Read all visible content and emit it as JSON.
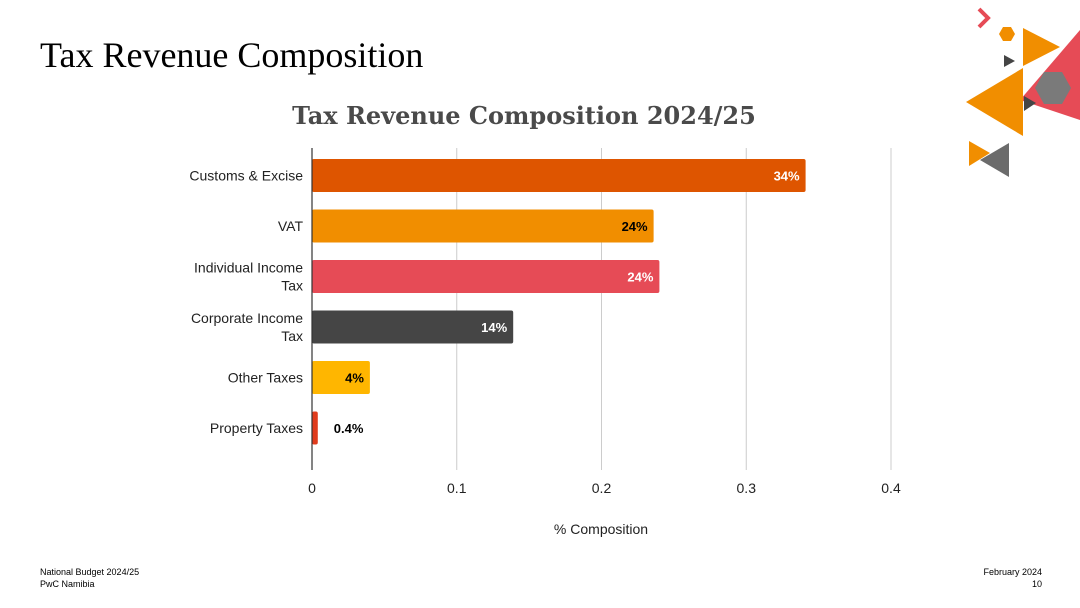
{
  "slide": {
    "title": "Tax Revenue Composition"
  },
  "footer": {
    "left_line1": "National Budget 2024/25",
    "left_line2": "PwC Namibia",
    "right_line1": "February 2024",
    "right_line2": "10"
  },
  "colors": {
    "customs": "#de5500",
    "vat": "#f18e00",
    "individual": "#e64b56",
    "corporate": "#454545",
    "other": "#ffb600",
    "property": "#e03c1d",
    "grid": "#cccccc"
  },
  "chart_data": {
    "type": "bar",
    "orientation": "horizontal",
    "title": "Tax Revenue Composition 2024/25",
    "xlabel": "% Composition",
    "ylabel": "",
    "xlim": [
      0,
      0.4
    ],
    "xticks": [
      "0",
      "0.1",
      "0.2",
      "0.3",
      "0.4"
    ],
    "xtick_values": [
      0,
      0.1,
      0.2,
      0.3,
      0.4
    ],
    "grid": true,
    "categories": [
      [
        "Customs & Excise"
      ],
      [
        "VAT"
      ],
      [
        "Individual Income",
        "Tax"
      ],
      [
        "Corporate Income",
        "Tax"
      ],
      [
        "Other Taxes"
      ],
      [
        "Property Taxes"
      ]
    ],
    "values": [
      0.341,
      0.236,
      0.24,
      0.139,
      0.04,
      0.004
    ],
    "data_labels": [
      "34%",
      "24%",
      "24%",
      "14%",
      "4%",
      "0.4%"
    ],
    "bar_colors": [
      "#de5500",
      "#f18e00",
      "#e64b56",
      "#454545",
      "#ffb600",
      "#e03c1d"
    ],
    "label_colors": [
      "#ffffff",
      "#000000",
      "#ffffff",
      "#ffffff",
      "#000000",
      "#000000"
    ]
  }
}
